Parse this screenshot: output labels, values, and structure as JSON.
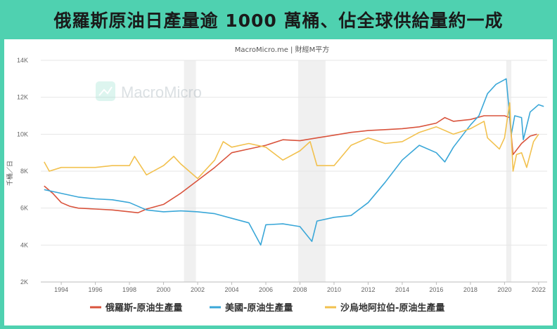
{
  "page_title": "俄羅斯原油日產量逾 1000 萬桶、佔全球供給量約一成",
  "source": "MacroMicro.me | 財經M平方",
  "watermark": "MacroMicro",
  "colors": {
    "frame": "#4fd1b0",
    "russia": "#d9533c",
    "usa": "#3aa7d8",
    "saudi": "#f2c14e"
  },
  "chart_data": {
    "type": "line",
    "title": "俄羅斯原油日產量逾 1000 萬桶、佔全球供給量約一成",
    "ylabel": "千桶／日",
    "xlabel": "",
    "ylim": [
      2000,
      14000
    ],
    "xlim": [
      1992.8,
      2022.5
    ],
    "yticks": [
      2000,
      4000,
      6000,
      8000,
      10000,
      12000,
      14000
    ],
    "ytick_labels": [
      "2K",
      "4K",
      "6K",
      "8K",
      "10K",
      "12K",
      "14K"
    ],
    "xticks": [
      1994,
      1996,
      1998,
      2000,
      2002,
      2004,
      2006,
      2008,
      2010,
      2012,
      2014,
      2016,
      2018,
      2020,
      2022
    ],
    "legend_position": "bottom",
    "recession_shading": [
      [
        2001.2,
        2001.9
      ],
      [
        2007.9,
        2009.5
      ],
      [
        2020.1,
        2020.4
      ]
    ],
    "series": [
      {
        "name": "俄羅斯-原油生產量",
        "color": "#d9533c",
        "x": [
          1993,
          1993.5,
          1994,
          1994.5,
          1995,
          1996,
          1997,
          1998,
          1998.5,
          1999,
          2000,
          2001,
          2002,
          2003,
          2003.5,
          2004,
          2005,
          2006,
          2007,
          2008,
          2009,
          2010,
          2011,
          2012,
          2013,
          2014,
          2015,
          2016,
          2016.5,
          2017,
          2018,
          2018.8,
          2019,
          2020,
          2020.3,
          2020.5,
          2021,
          2021.5,
          2021.9
        ],
        "y": [
          7200,
          6800,
          6300,
          6100,
          6000,
          5950,
          5900,
          5800,
          5750,
          5950,
          6200,
          6800,
          7500,
          8200,
          8600,
          9000,
          9200,
          9400,
          9700,
          9650,
          9800,
          9950,
          10100,
          10200,
          10250,
          10300,
          10400,
          10600,
          10900,
          10700,
          10800,
          11000,
          11000,
          11000,
          10900,
          8900,
          9500,
          9900,
          10000
        ]
      },
      {
        "name": "美國-原油生產量",
        "color": "#3aa7d8",
        "x": [
          1993,
          1994,
          1995,
          1996,
          1997,
          1998,
          1999,
          2000,
          2001,
          2002,
          2003,
          2004,
          2005,
          2005.7,
          2006,
          2007,
          2008,
          2008.7,
          2009,
          2010,
          2011,
          2012,
          2013,
          2014,
          2015,
          2016,
          2016.5,
          2017,
          2018,
          2018.5,
          2019,
          2019.5,
          2020.1,
          2020.4,
          2020.6,
          2021,
          2021.1,
          2021.5,
          2022,
          2022.3
        ],
        "y": [
          7000,
          6800,
          6600,
          6500,
          6450,
          6300,
          5900,
          5800,
          5850,
          5800,
          5700,
          5450,
          5200,
          4000,
          5100,
          5150,
          5000,
          4200,
          5300,
          5500,
          5600,
          6300,
          7400,
          8600,
          9400,
          9000,
          8500,
          9300,
          10500,
          11000,
          12200,
          12700,
          13000,
          10000,
          11000,
          10900,
          9700,
          11200,
          11600,
          11500
        ]
      },
      {
        "name": "沙烏地阿拉伯-原油生產量",
        "color": "#f2c14e",
        "x": [
          1993,
          1993.3,
          1994,
          1995,
          1996,
          1997,
          1998,
          1998.3,
          1999,
          2000,
          2000.6,
          2001,
          2002,
          2003,
          2003.5,
          2004,
          2005,
          2006,
          2007,
          2008,
          2008.6,
          2009,
          2010,
          2011,
          2012,
          2013,
          2014,
          2015,
          2016,
          2017,
          2018,
          2018.8,
          2019,
          2019.7,
          2020,
          2020.3,
          2020.5,
          2020.7,
          2021,
          2021.3,
          2021.7,
          2022
        ],
        "y": [
          8500,
          8000,
          8200,
          8200,
          8200,
          8300,
          8300,
          8800,
          7800,
          8300,
          8800,
          8400,
          7600,
          8600,
          9600,
          9300,
          9500,
          9300,
          8600,
          9100,
          9600,
          8300,
          8300,
          9400,
          9800,
          9500,
          9600,
          10100,
          10400,
          10000,
          10300,
          10700,
          9800,
          9200,
          9800,
          11700,
          8000,
          8900,
          9000,
          8200,
          9600,
          10000
        ]
      }
    ]
  }
}
